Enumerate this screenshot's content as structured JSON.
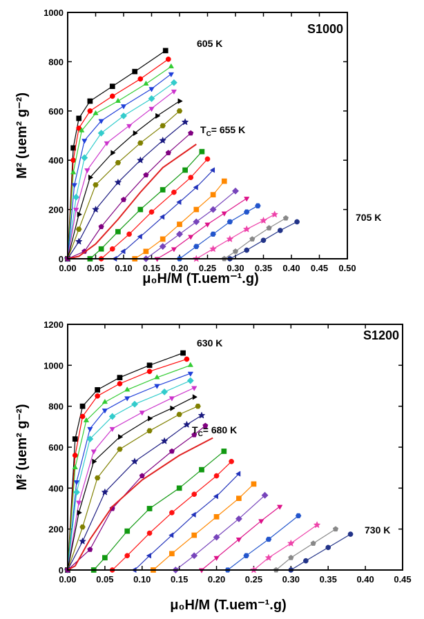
{
  "chart_data": [
    {
      "type": "line",
      "title": "S1000",
      "xlabel": "μ₀H/M (T.uem⁻¹.g)",
      "ylabel": "M² (uem² g⁻²)",
      "labels": [
        "605 K",
        "705 K"
      ],
      "tc_label": {
        "symbol": "T",
        "subscript": "C",
        "text": "= 655 K"
      },
      "xlim": [
        0,
        0.5
      ],
      "ylim": [
        0,
        1000
      ],
      "xticks": [
        {
          "value": 0,
          "label": "0.00"
        },
        {
          "value": 0.05,
          "label": "0.05"
        },
        {
          "value": 0.1,
          "label": "0.10"
        },
        {
          "value": 0.15,
          "label": "0.15"
        },
        {
          "value": 0.2,
          "label": "0.20"
        },
        {
          "value": 0.25,
          "label": "0.25"
        },
        {
          "value": 0.3,
          "label": "0.30"
        },
        {
          "value": 0.35,
          "label": "0.35"
        },
        {
          "value": 0.4,
          "label": "0.40"
        },
        {
          "value": 0.45,
          "label": "0.45"
        },
        {
          "value": 0.5,
          "label": "0.50"
        }
      ],
      "yticks": [
        0,
        200,
        400,
        600,
        800,
        1000
      ],
      "series": [
        {
          "color": "#000000",
          "marker": "square",
          "x": [
            0,
            0.01,
            0.02,
            0.04,
            0.08,
            0.12,
            0.175
          ],
          "values": [
            0,
            450,
            570,
            640,
            700,
            760,
            845
          ]
        },
        {
          "color": "#ff0000",
          "marker": "circle",
          "x": [
            0,
            0.01,
            0.02,
            0.04,
            0.08,
            0.13,
            0.18
          ],
          "values": [
            0,
            400,
            530,
            600,
            660,
            730,
            810
          ]
        },
        {
          "color": "#33cc33",
          "marker": "triangle-up",
          "x": [
            0,
            0.01,
            0.025,
            0.05,
            0.09,
            0.14,
            0.185
          ],
          "values": [
            0,
            350,
            520,
            590,
            640,
            710,
            780
          ]
        },
        {
          "color": "#1f3fd9",
          "marker": "triangle-down",
          "x": [
            0,
            0.012,
            0.03,
            0.06,
            0.1,
            0.15,
            0.185
          ],
          "values": [
            0,
            300,
            480,
            560,
            620,
            690,
            750
          ]
        },
        {
          "color": "#33cccc",
          "marker": "diamond",
          "x": [
            0,
            0.015,
            0.03,
            0.06,
            0.1,
            0.15,
            0.19
          ],
          "values": [
            0,
            250,
            410,
            510,
            580,
            650,
            715
          ]
        },
        {
          "color": "#cc33cc",
          "marker": "triangle-down",
          "x": [
            0,
            0.015,
            0.035,
            0.07,
            0.11,
            0.15,
            0.19
          ],
          "values": [
            0,
            200,
            360,
            470,
            540,
            610,
            680
          ]
        },
        {
          "color": "#000000",
          "marker": "triangle-right",
          "x": [
            0,
            0.02,
            0.04,
            0.08,
            0.12,
            0.16,
            0.2
          ],
          "values": [
            0,
            180,
            330,
            430,
            510,
            580,
            640
          ]
        },
        {
          "color": "#808000",
          "marker": "hexagon",
          "x": [
            0,
            0.02,
            0.05,
            0.09,
            0.13,
            0.17,
            0.2
          ],
          "values": [
            0,
            120,
            300,
            390,
            470,
            540,
            600
          ]
        },
        {
          "color": "#1a1a80",
          "marker": "star",
          "x": [
            0,
            0.02,
            0.05,
            0.09,
            0.13,
            0.17,
            0.21
          ],
          "values": [
            0,
            70,
            200,
            310,
            400,
            480,
            555
          ]
        },
        {
          "color": "#800080",
          "marker": "pentagon",
          "x": [
            0,
            0.03,
            0.06,
            0.1,
            0.14,
            0.18,
            0.22
          ],
          "values": [
            0,
            30,
            130,
            240,
            340,
            430,
            510
          ]
        },
        {
          "color": "#e02020",
          "marker": "none",
          "x": [
            0,
            0.02,
            0.05,
            0.09,
            0.13,
            0.17,
            0.23
          ],
          "values": [
            0,
            10,
            60,
            160,
            270,
            370,
            465
          ]
        },
        {
          "color": "#119911",
          "marker": "square",
          "x": [
            0.04,
            0.06,
            0.09,
            0.13,
            0.17,
            0.21,
            0.24
          ],
          "values": [
            0,
            40,
            110,
            200,
            280,
            360,
            435
          ]
        },
        {
          "color": "#ff1111",
          "marker": "circle",
          "x": [
            0.06,
            0.08,
            0.11,
            0.15,
            0.19,
            0.22,
            0.25
          ],
          "values": [
            0,
            40,
            100,
            190,
            270,
            330,
            405
          ]
        },
        {
          "color": "#2233bb",
          "marker": "triangle-left",
          "x": [
            0.085,
            0.1,
            0.13,
            0.17,
            0.2,
            0.23,
            0.26
          ],
          "values": [
            0,
            30,
            90,
            170,
            230,
            290,
            360
          ]
        },
        {
          "color": "#ff8800",
          "marker": "square",
          "x": [
            0.12,
            0.14,
            0.17,
            0.2,
            0.23,
            0.26,
            0.28
          ],
          "values": [
            0,
            30,
            80,
            140,
            200,
            260,
            315
          ]
        },
        {
          "color": "#7744bb",
          "marker": "diamond",
          "x": [
            0.14,
            0.17,
            0.2,
            0.23,
            0.26,
            0.3
          ],
          "values": [
            0,
            50,
            100,
            150,
            200,
            275
          ]
        },
        {
          "color": "#dd1188",
          "marker": "triangle-down",
          "x": [
            0.16,
            0.19,
            0.22,
            0.25,
            0.28,
            0.32
          ],
          "values": [
            0,
            40,
            90,
            140,
            185,
            245
          ]
        },
        {
          "color": "#2255cc",
          "marker": "hexagon",
          "x": [
            0.2,
            0.23,
            0.26,
            0.29,
            0.32,
            0.34
          ],
          "values": [
            0,
            50,
            100,
            150,
            190,
            215
          ]
        },
        {
          "color": "#ee44aa",
          "marker": "star",
          "x": [
            0.23,
            0.26,
            0.29,
            0.32,
            0.35,
            0.37
          ],
          "values": [
            0,
            40,
            80,
            120,
            155,
            180
          ]
        },
        {
          "color": "#888888",
          "marker": "pentagon",
          "x": [
            0.28,
            0.3,
            0.33,
            0.36,
            0.39
          ],
          "values": [
            0,
            30,
            80,
            125,
            165
          ]
        },
        {
          "color": "#223388",
          "marker": "circle",
          "x": [
            0.29,
            0.32,
            0.35,
            0.38,
            0.41
          ],
          "values": [
            0,
            35,
            75,
            115,
            150
          ]
        }
      ]
    },
    {
      "type": "line",
      "title": "S1200",
      "xlabel": "μ₀H/M (T.uem⁻¹.g)",
      "ylabel": "M² (uem² g⁻²)",
      "labels": [
        "630 K",
        "730 K"
      ],
      "tc_label": {
        "symbol": "T",
        "subscript": "C",
        "text": "= 680 K"
      },
      "xlim": [
        0,
        0.45
      ],
      "ylim": [
        0,
        1200
      ],
      "xticks": [
        {
          "value": 0,
          "label": "0.00"
        },
        {
          "value": 0.05,
          "label": "0.05"
        },
        {
          "value": 0.1,
          "label": "0.10"
        },
        {
          "value": 0.15,
          "label": "0.15"
        },
        {
          "value": 0.2,
          "label": "0.20"
        },
        {
          "value": 0.25,
          "label": "0.25"
        },
        {
          "value": 0.3,
          "label": "0.30"
        },
        {
          "value": 0.35,
          "label": "0.35"
        },
        {
          "value": 0.4,
          "label": "0.40"
        },
        {
          "value": 0.45,
          "label": "0.45"
        }
      ],
      "yticks": [
        0,
        200,
        400,
        600,
        800,
        1000,
        1200
      ],
      "series": [
        {
          "color": "#000000",
          "marker": "square",
          "x": [
            0,
            0.01,
            0.02,
            0.04,
            0.07,
            0.11,
            0.155
          ],
          "values": [
            0,
            640,
            800,
            880,
            940,
            1000,
            1060
          ]
        },
        {
          "color": "#ff0000",
          "marker": "circle",
          "x": [
            0,
            0.01,
            0.02,
            0.04,
            0.07,
            0.11,
            0.16
          ],
          "values": [
            0,
            560,
            750,
            850,
            910,
            970,
            1030
          ]
        },
        {
          "color": "#33cc33",
          "marker": "triangle-up",
          "x": [
            0,
            0.01,
            0.025,
            0.05,
            0.08,
            0.12,
            0.165
          ],
          "values": [
            0,
            500,
            730,
            820,
            880,
            940,
            1000
          ]
        },
        {
          "color": "#1f3fd9",
          "marker": "triangle-down",
          "x": [
            0,
            0.012,
            0.03,
            0.05,
            0.08,
            0.12,
            0.165
          ],
          "values": [
            0,
            430,
            690,
            780,
            840,
            900,
            960
          ]
        },
        {
          "color": "#33cccc",
          "marker": "diamond",
          "x": [
            0,
            0.012,
            0.03,
            0.06,
            0.09,
            0.13,
            0.165
          ],
          "values": [
            0,
            380,
            640,
            750,
            810,
            870,
            925
          ]
        },
        {
          "color": "#cc33cc",
          "marker": "triangle-down",
          "x": [
            0,
            0.015,
            0.035,
            0.06,
            0.1,
            0.14,
            0.17
          ],
          "values": [
            0,
            330,
            580,
            690,
            770,
            840,
            890
          ]
        },
        {
          "color": "#000000",
          "marker": "triangle-right",
          "x": [
            0,
            0.015,
            0.035,
            0.07,
            0.11,
            0.14,
            0.17
          ],
          "values": [
            0,
            280,
            530,
            650,
            740,
            790,
            845
          ]
        },
        {
          "color": "#808000",
          "marker": "hexagon",
          "x": [
            0,
            0.02,
            0.04,
            0.07,
            0.11,
            0.15,
            0.175
          ],
          "values": [
            0,
            210,
            450,
            590,
            680,
            760,
            800
          ]
        },
        {
          "color": "#1a1a80",
          "marker": "star",
          "x": [
            0,
            0.02,
            0.05,
            0.09,
            0.13,
            0.16,
            0.18
          ],
          "values": [
            0,
            140,
            380,
            530,
            630,
            710,
            755
          ]
        },
        {
          "color": "#800080",
          "marker": "pentagon",
          "x": [
            0,
            0.03,
            0.06,
            0.1,
            0.14,
            0.17,
            0.185
          ],
          "values": [
            0,
            100,
            300,
            460,
            580,
            660,
            705
          ]
        },
        {
          "color": "#e02020",
          "marker": "none",
          "x": [
            0,
            0.01,
            0.03,
            0.06,
            0.1,
            0.15,
            0.195
          ],
          "values": [
            0,
            20,
            150,
            310,
            440,
            560,
            645
          ]
        },
        {
          "color": "#119911",
          "marker": "square",
          "x": [
            0.035,
            0.05,
            0.08,
            0.11,
            0.15,
            0.18,
            0.21
          ],
          "values": [
            0,
            60,
            190,
            300,
            400,
            490,
            580
          ]
        },
        {
          "color": "#ff1111",
          "marker": "circle",
          "x": [
            0.06,
            0.08,
            0.11,
            0.14,
            0.17,
            0.2,
            0.22
          ],
          "values": [
            0,
            70,
            180,
            280,
            370,
            460,
            530
          ]
        },
        {
          "color": "#2233bb",
          "marker": "triangle-left",
          "x": [
            0.09,
            0.11,
            0.14,
            0.17,
            0.2,
            0.23
          ],
          "values": [
            0,
            70,
            170,
            270,
            360,
            470
          ]
        },
        {
          "color": "#ff8800",
          "marker": "square",
          "x": [
            0.115,
            0.14,
            0.17,
            0.2,
            0.23,
            0.25
          ],
          "values": [
            0,
            80,
            170,
            260,
            350,
            420
          ]
        },
        {
          "color": "#7744bb",
          "marker": "diamond",
          "x": [
            0.145,
            0.17,
            0.2,
            0.23,
            0.265
          ],
          "values": [
            0,
            70,
            160,
            250,
            365
          ]
        },
        {
          "color": "#dd1188",
          "marker": "triangle-down",
          "x": [
            0.18,
            0.2,
            0.23,
            0.26,
            0.285
          ],
          "values": [
            0,
            60,
            150,
            240,
            310
          ]
        },
        {
          "color": "#2255cc",
          "marker": "hexagon",
          "x": [
            0.215,
            0.24,
            0.27,
            0.31
          ],
          "values": [
            0,
            70,
            150,
            265
          ]
        },
        {
          "color": "#ee44aa",
          "marker": "star",
          "x": [
            0.25,
            0.27,
            0.3,
            0.335
          ],
          "values": [
            0,
            60,
            130,
            220
          ]
        },
        {
          "color": "#888888",
          "marker": "pentagon",
          "x": [
            0.28,
            0.3,
            0.33,
            0.36
          ],
          "values": [
            0,
            60,
            130,
            200
          ]
        },
        {
          "color": "#223388",
          "marker": "circle",
          "x": [
            0.3,
            0.32,
            0.35,
            0.38
          ],
          "values": [
            0,
            45,
            110,
            175
          ]
        }
      ]
    }
  ]
}
